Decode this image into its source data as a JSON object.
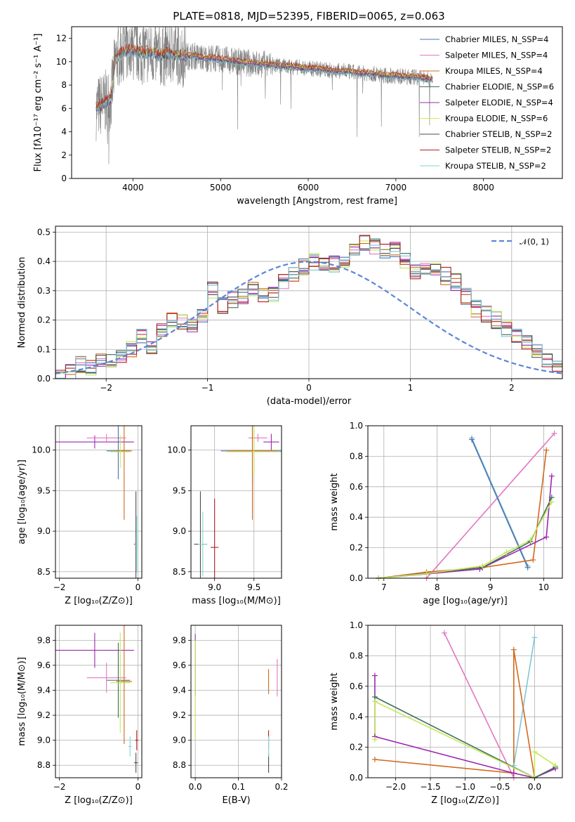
{
  "figure": {
    "title": "PLATE=0818, MJD=52395, FIBERID=0065, z=0.063"
  },
  "chart_data": [
    {
      "id": "spectrum",
      "type": "line",
      "xlabel": "wavelength [Angstrom, rest frame]",
      "ylabel": "Flux [fλ10⁻¹⁷ erg cm⁻² s⁻¹ A⁻¹]",
      "xlim": [
        3300,
        8900
      ],
      "ylim": [
        0,
        13
      ],
      "xticks": [
        4000,
        5000,
        6000,
        7000,
        8000
      ],
      "yticks": [
        0,
        2,
        4,
        6,
        8,
        10,
        12
      ],
      "grid": false,
      "legend_position": "top-right",
      "observed": {
        "name": "",
        "color": "#808080",
        "x": [
          3580,
          3650,
          3700,
          3750,
          3800,
          3850,
          3900,
          3950,
          4000,
          4100,
          4200,
          4300,
          4400,
          4500,
          4600,
          4700,
          4800,
          4900,
          5000,
          5100,
          5200,
          5300,
          5400,
          5500,
          5600,
          5700,
          5800,
          5900,
          6000,
          6100,
          6200,
          6300,
          6400,
          6500,
          6600,
          6700,
          6800,
          6900,
          7000,
          7100,
          7200,
          7300,
          7400
        ],
        "y": [
          6.0,
          6.4,
          6.6,
          6.8,
          10.2,
          10.6,
          10.9,
          11.0,
          11.0,
          10.8,
          10.8,
          10.5,
          10.7,
          10.6,
          10.5,
          10.5,
          10.3,
          10.3,
          10.2,
          10.1,
          10.0,
          9.9,
          9.8,
          9.8,
          9.7,
          9.6,
          9.6,
          9.5,
          9.4,
          9.4,
          9.3,
          9.2,
          9.2,
          9.1,
          9.0,
          9.0,
          8.9,
          8.8,
          8.8,
          8.7,
          8.7,
          8.6,
          8.5
        ]
      },
      "series": [
        {
          "name": "Chabrier MILES, N_SSP=4",
          "color": "#4c72b0",
          "offset": 0.0
        },
        {
          "name": "Salpeter MILES, N_SSP=4",
          "color": "#e377c2",
          "offset": 0.05
        },
        {
          "name": "Kroupa MILES, N_SSP=4",
          "color": "#d2691e",
          "offset": -0.05
        },
        {
          "name": "Chabrier ELODIE, N_SSP=6",
          "color": "#3f6f5a",
          "offset": 0.1
        },
        {
          "name": "Salpeter ELODIE, N_SSP=4",
          "color": "#9c27b0",
          "offset": -0.1
        },
        {
          "name": "Kroupa ELODIE, N_SSP=6",
          "color": "#d8e84a",
          "offset": 0.15
        },
        {
          "name": "Chabrier STELIB, N_SSP=2",
          "color": "#4d4d4d",
          "offset": -0.15
        },
        {
          "name": "Salpeter STELIB, N_SSP=2",
          "color": "#b22222",
          "offset": 0.2
        },
        {
          "name": "Kroupa STELIB, N_SSP=2",
          "color": "#7fd6d6",
          "offset": -0.2
        }
      ]
    },
    {
      "id": "residuals",
      "type": "bar",
      "xlabel": "(data-model)/error",
      "ylabel": "Normed distribution",
      "xlim": [
        -2.5,
        2.5
      ],
      "ylim": [
        0,
        0.52
      ],
      "xticks": [
        -2,
        -1,
        0,
        1,
        2
      ],
      "yticks": [
        0.0,
        0.1,
        0.2,
        0.3,
        0.4,
        0.5
      ],
      "grid": true,
      "legend_position": "top-right",
      "reference": {
        "name": "𝒩(0, 1)",
        "color": "#5b86d6",
        "mean": 0,
        "sigma": 1
      },
      "bin_start": -2.5,
      "bin_width": 0.1,
      "histogram_base": [
        0.005,
        0.02,
        0.05,
        0.04,
        0.07,
        0.06,
        0.08,
        0.1,
        0.14,
        0.1,
        0.17,
        0.2,
        0.19,
        0.18,
        0.22,
        0.3,
        0.25,
        0.27,
        0.28,
        0.3,
        0.28,
        0.29,
        0.33,
        0.35,
        0.38,
        0.4,
        0.4,
        0.39,
        0.41,
        0.44,
        0.46,
        0.45,
        0.43,
        0.44,
        0.4,
        0.36,
        0.37,
        0.38,
        0.35,
        0.33,
        0.28,
        0.24,
        0.22,
        0.2,
        0.17,
        0.15,
        0.12,
        0.09,
        0.07,
        0.05
      ],
      "series_colors": [
        "#4c72b0",
        "#e377c2",
        "#d2691e",
        "#3f6f5a",
        "#9c27b0",
        "#c5e85a",
        "#4d4d4d",
        "#b22222",
        "#7fc6d6"
      ]
    },
    {
      "id": "age-vs-Z",
      "type": "scatter",
      "xlabel": "Z [log₁₀(Z/Z⊙)]",
      "ylabel": "age  [log₁₀(age/yr)]",
      "xlim": [
        -2.1,
        0.1
      ],
      "ylim": [
        8.42,
        10.3
      ],
      "xticks": [
        -2,
        0
      ],
      "yticks": [
        8.5,
        9.0,
        9.5,
        10.0
      ],
      "grid": true,
      "points": [
        {
          "x": -1.1,
          "y": 10.1,
          "xerr": 1.0,
          "yerr": 0.08,
          "color": "#9c27b0"
        },
        {
          "x": -0.8,
          "y": 10.15,
          "xerr": 0.5,
          "yerr": 0.05,
          "color": "#e377c2"
        },
        {
          "x": -0.5,
          "y": 9.99,
          "xerr": 0.3,
          "yerr": 0.35,
          "color": "#4c72b0"
        },
        {
          "x": -0.35,
          "y": 9.99,
          "xerr": 0.2,
          "yerr": 0.85,
          "color": "#d2691e"
        },
        {
          "x": -0.45,
          "y": 9.98,
          "xerr": 0.25,
          "yerr": 0.2,
          "color": "#c5e85a"
        },
        {
          "x": -0.05,
          "y": 8.84,
          "xerr": 0.05,
          "yerr": 0.65,
          "color": "#4d4d4d"
        },
        {
          "x": -0.03,
          "y": 8.84,
          "xerr": 0.04,
          "yerr": 0.35,
          "color": "#7fd6d6"
        }
      ]
    },
    {
      "id": "age-vs-mass",
      "type": "scatter",
      "xlabel": "mass [log₁₀(M/M⊙)]",
      "ylabel": "",
      "xlim": [
        8.7,
        9.85
      ],
      "ylim": [
        8.42,
        10.3
      ],
      "xticks": [
        9.0,
        9.5
      ],
      "yticks": [
        8.5,
        9.0,
        9.5,
        10.0
      ],
      "grid": true,
      "points": [
        {
          "x": 9.72,
          "y": 10.1,
          "xerr": 0.1,
          "yerr": 0.1,
          "color": "#9c27b0"
        },
        {
          "x": 9.55,
          "y": 10.15,
          "xerr": 0.12,
          "yerr": 0.05,
          "color": "#e377c2"
        },
        {
          "x": 9.48,
          "y": 9.99,
          "xerr": 0.4,
          "yerr": 0.4,
          "color": "#4c72b0"
        },
        {
          "x": 9.48,
          "y": 9.99,
          "xerr": 0.3,
          "yerr": 0.85,
          "color": "#d2691e"
        },
        {
          "x": 9.5,
          "y": 9.98,
          "xerr": 0.35,
          "yerr": 0.3,
          "color": "#c5e85a"
        },
        {
          "x": 8.82,
          "y": 8.84,
          "xerr": 0.08,
          "yerr": 0.65,
          "color": "#4d4d4d"
        },
        {
          "x": 9.0,
          "y": 8.8,
          "xerr": 0.05,
          "yerr": 0.6,
          "color": "#b22222"
        },
        {
          "x": 8.85,
          "y": 8.84,
          "xerr": 0.06,
          "yerr": 0.4,
          "color": "#7fd6d6"
        }
      ]
    },
    {
      "id": "massweight-vs-age",
      "type": "line",
      "xlabel": "age  [log₁₀(age/yr)]",
      "ylabel": "mass weight",
      "xlim": [
        6.7,
        10.35
      ],
      "ylim": [
        0,
        1.0
      ],
      "xticks": [
        7,
        8,
        9,
        10
      ],
      "yticks": [
        0.0,
        0.2,
        0.4,
        0.6,
        0.8,
        1.0
      ],
      "grid": true,
      "series": [
        {
          "name": "",
          "color": "#e377c2",
          "x": [
            7.8,
            10.2
          ],
          "y": [
            0.0,
            0.95
          ]
        },
        {
          "name": "",
          "color": "#7fc6d6",
          "x": [
            8.65,
            9.7
          ],
          "y": [
            0.92,
            0.08
          ]
        },
        {
          "name": "",
          "color": "#4c72b0",
          "x": [
            8.65,
            9.7
          ],
          "y": [
            0.91,
            0.07
          ]
        },
        {
          "name": "",
          "color": "#d2691e",
          "x": [
            6.9,
            7.8,
            8.85,
            9.8,
            10.05
          ],
          "y": [
            0.0,
            0.04,
            0.07,
            0.12,
            0.84
          ]
        },
        {
          "name": "",
          "color": "#9c27b0",
          "x": [
            6.9,
            8.8,
            10.05,
            10.15
          ],
          "y": [
            0.0,
            0.06,
            0.27,
            0.67
          ]
        },
        {
          "name": "",
          "color": "#3f6f5a",
          "x": [
            6.9,
            8.85,
            9.75,
            10.15
          ],
          "y": [
            0.0,
            0.07,
            0.24,
            0.53
          ]
        },
        {
          "name": "",
          "color": "#c5e85a",
          "x": [
            6.9,
            7.8,
            8.85,
            9.3,
            9.75,
            10.15
          ],
          "y": [
            0.0,
            0.03,
            0.08,
            0.17,
            0.25,
            0.5
          ]
        }
      ]
    },
    {
      "id": "mass-vs-Z",
      "type": "scatter",
      "xlabel": "Z [log₁₀(Z/Z⊙)]",
      "ylabel": "mass [log₁₀(M/M⊙)]",
      "xlim": [
        -2.1,
        0.1
      ],
      "ylim": [
        8.7,
        9.92
      ],
      "xticks": [
        -2,
        0
      ],
      "yticks": [
        8.8,
        9.0,
        9.2,
        9.4,
        9.6,
        9.8
      ],
      "grid": true,
      "points": [
        {
          "x": -1.1,
          "y": 9.72,
          "xerr": 1.0,
          "yerr": 0.14,
          "color": "#9c27b0"
        },
        {
          "x": -0.8,
          "y": 9.5,
          "xerr": 0.5,
          "yerr": 0.12,
          "color": "#e377c2"
        },
        {
          "x": -0.5,
          "y": 9.48,
          "xerr": 0.3,
          "yerr": 0.3,
          "color": "#3f6f5a"
        },
        {
          "x": -0.35,
          "y": 9.47,
          "xerr": 0.2,
          "yerr": 0.5,
          "color": "#d2691e"
        },
        {
          "x": -0.45,
          "y": 9.46,
          "xerr": 0.25,
          "yerr": 0.4,
          "color": "#c5e85a"
        },
        {
          "x": -0.03,
          "y": 9.0,
          "xerr": 0.04,
          "yerr": 0.08,
          "color": "#b22222"
        },
        {
          "x": -0.05,
          "y": 8.82,
          "xerr": 0.05,
          "yerr": 0.08,
          "color": "#4d4d4d"
        },
        {
          "x": -0.2,
          "y": 8.95,
          "xerr": 0.04,
          "yerr": 0.08,
          "color": "#7fd6d6"
        }
      ]
    },
    {
      "id": "mass-vs-EBV",
      "type": "scatter",
      "xlabel": "E(B-V)",
      "ylabel": "",
      "xlim": [
        -0.01,
        0.2
      ],
      "ylim": [
        8.7,
        9.92
      ],
      "xticks": [
        0.0,
        0.1,
        0.2
      ],
      "yticks": [
        8.8,
        9.0,
        9.2,
        9.4,
        9.6,
        9.8
      ],
      "grid": true,
      "points": [
        {
          "x": 0.0,
          "y": 9.6,
          "xerr": 0.0,
          "yerr": 0.25,
          "color": "#9c27b0"
        },
        {
          "x": 0.0,
          "y": 9.4,
          "xerr": 0.0,
          "yerr": 0.4,
          "color": "#c5e85a"
        },
        {
          "x": 0.17,
          "y": 9.47,
          "xerr": 0.0,
          "yerr": 0.1,
          "color": "#d2691e"
        },
        {
          "x": 0.19,
          "y": 9.5,
          "xerr": 0.0,
          "yerr": 0.15,
          "color": "#e377c2"
        },
        {
          "x": 0.17,
          "y": 9.0,
          "xerr": 0.0,
          "yerr": 0.08,
          "color": "#b22222"
        },
        {
          "x": 0.17,
          "y": 8.82,
          "xerr": 0.0,
          "yerr": 0.08,
          "color": "#4d4d4d"
        },
        {
          "x": 0.17,
          "y": 8.95,
          "xerr": 0.0,
          "yerr": 0.08,
          "color": "#7fd6d6"
        }
      ]
    },
    {
      "id": "massweight-vs-Z",
      "type": "line",
      "xlabel": "Z [log₁₀(Z/Z⊙)]",
      "ylabel": "mass weight",
      "xlim": [
        -2.4,
        0.4
      ],
      "ylim": [
        0,
        1.0
      ],
      "xticks": [
        -2.0,
        -1.5,
        -1.0,
        -0.5,
        0.0
      ],
      "yticks": [
        0.0,
        0.2,
        0.4,
        0.6,
        0.8,
        1.0
      ],
      "grid": true,
      "series": [
        {
          "name": "",
          "color": "#e377c2",
          "x": [
            -1.3,
            -0.3
          ],
          "y": [
            0.95,
            0.0
          ]
        },
        {
          "name": "",
          "color": "#7fc6d6",
          "x": [
            -0.3,
            0.0
          ],
          "y": [
            0.08,
            0.92
          ]
        },
        {
          "name": "",
          "color": "#d2691e",
          "x": [
            -2.3,
            -0.3,
            -0.3,
            0.0
          ],
          "y": [
            0.12,
            0.03,
            0.84,
            0.0
          ]
        },
        {
          "name": "",
          "color": "#9c27b0",
          "x": [
            -2.3,
            -2.3,
            -0.3,
            0.0,
            0.3
          ],
          "y": [
            0.67,
            0.27,
            0.03,
            0.0,
            0.06
          ]
        },
        {
          "name": "",
          "color": "#3f6f5a",
          "x": [
            -2.3,
            0.0,
            0.3
          ],
          "y": [
            0.53,
            0.0,
            0.07
          ]
        },
        {
          "name": "",
          "color": "#c5e85a",
          "x": [
            -2.3,
            -2.3,
            0.0,
            0.0,
            0.3
          ],
          "y": [
            0.25,
            0.5,
            0.0,
            0.17,
            0.08
          ]
        }
      ]
    }
  ]
}
